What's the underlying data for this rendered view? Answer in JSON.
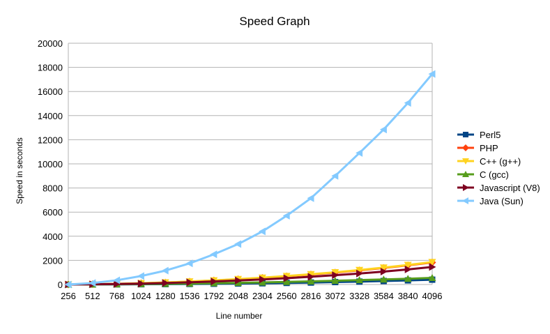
{
  "chart_data": {
    "type": "line",
    "title": "Speed Graph",
    "xlabel": "Line number",
    "ylabel": "Speed in seconds",
    "x": [
      256,
      512,
      768,
      1024,
      1280,
      1536,
      1792,
      2048,
      2304,
      2560,
      2816,
      3072,
      3328,
      3584,
      3840,
      4096
    ],
    "ylim": [
      0,
      20000
    ],
    "yticks": [
      0,
      2000,
      4000,
      6000,
      8000,
      10000,
      12000,
      14000,
      16000,
      18000,
      20000
    ],
    "grid": true,
    "legend": "right",
    "series": [
      {
        "name": "Perl5",
        "color": "#004586",
        "marker": "square",
        "values": [
          0,
          5,
          10,
          20,
          30,
          45,
          60,
          80,
          100,
          130,
          160,
          200,
          240,
          290,
          340,
          400
        ]
      },
      {
        "name": "PHP",
        "color": "#ff420e",
        "marker": "diamond",
        "values": [
          0,
          20,
          50,
          100,
          160,
          240,
          330,
          430,
          550,
          680,
          830,
          990,
          1170,
          1370,
          1590,
          1830
        ]
      },
      {
        "name": "C++ (g++)",
        "color": "#ffd320",
        "marker": "triangle-down",
        "values": [
          0,
          20,
          55,
          105,
          170,
          250,
          340,
          445,
          565,
          700,
          850,
          1015,
          1200,
          1400,
          1620,
          1860
        ]
      },
      {
        "name": "C (gcc)",
        "color": "#579d1c",
        "marker": "triangle-up",
        "values": [
          0,
          8,
          20,
          40,
          60,
          80,
          110,
          140,
          175,
          215,
          260,
          310,
          365,
          420,
          480,
          550
        ]
      },
      {
        "name": "Javascript (V8)",
        "color": "#7e0021",
        "marker": "triangle-right",
        "values": [
          0,
          15,
          40,
          75,
          120,
          180,
          250,
          330,
          420,
          520,
          640,
          770,
          910,
          1070,
          1250,
          1450
        ]
      },
      {
        "name": "Java (Sun)",
        "color": "#83caff",
        "marker": "triangle-left",
        "values": [
          0,
          120,
          350,
          700,
          1150,
          1750,
          2500,
          3350,
          4400,
          5700,
          7150,
          9000,
          10900,
          12850,
          15050,
          17450
        ]
      }
    ]
  }
}
